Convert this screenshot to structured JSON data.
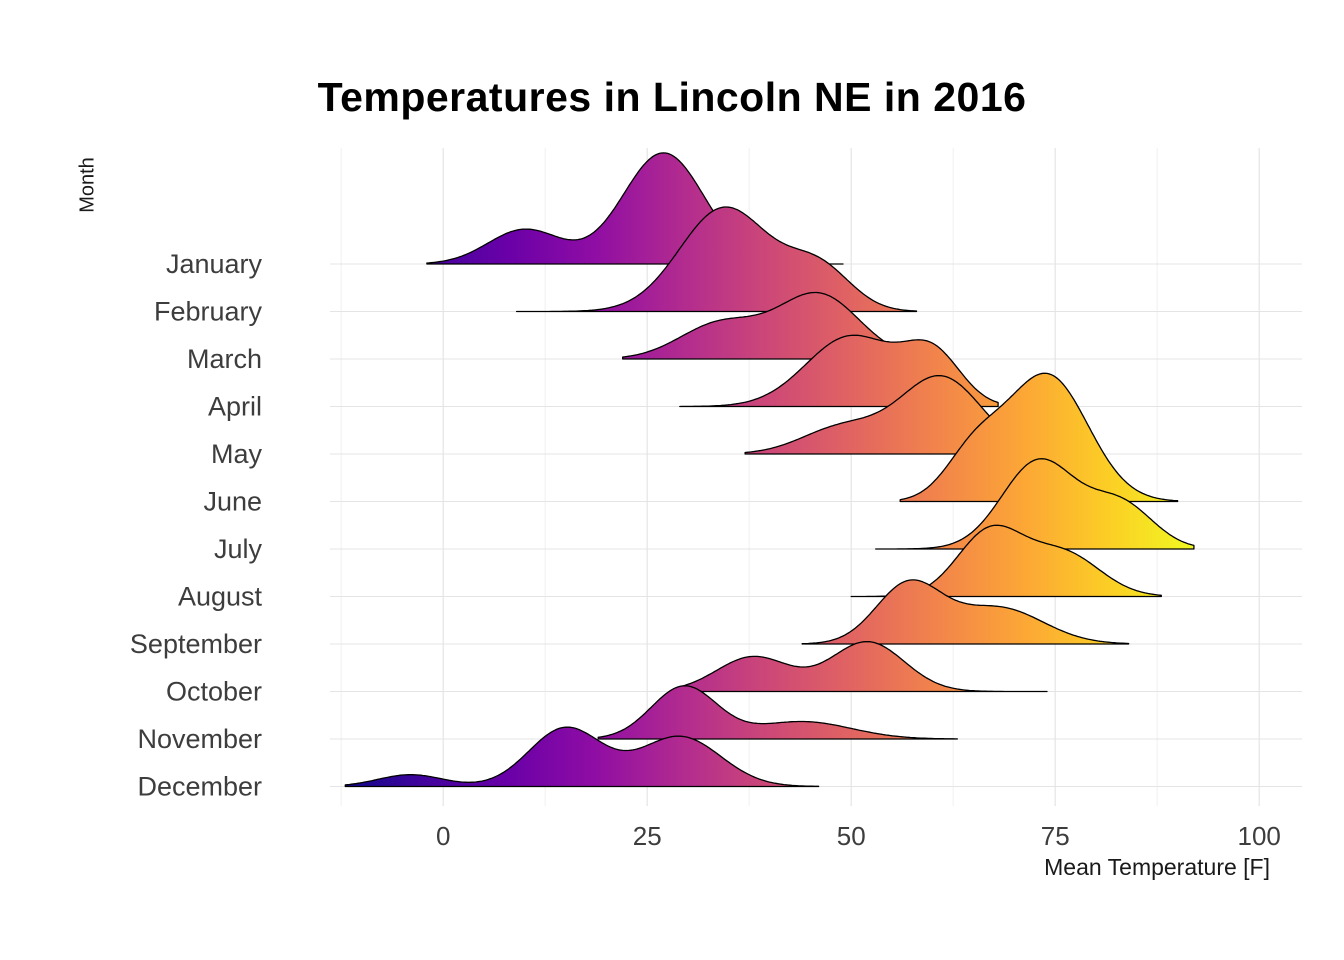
{
  "chart_data": {
    "type": "ridgeline",
    "title": "Temperatures in Lincoln NE in 2016",
    "xlabel": "Mean Temperature [F]",
    "ylabel": "Month",
    "x_ticks": [
      0,
      25,
      50,
      75,
      100
    ],
    "x_minor_ticks": [
      -12.5,
      12.5,
      37.5,
      62.5,
      87.5
    ],
    "xlim": [
      -14,
      105
    ],
    "grid": true,
    "legend": "none",
    "colors": {
      "outline": "#000000",
      "grid_major": "#e4e4e4",
      "grid_minor": "#f1f1f1",
      "axis_text": "#3d3d3d",
      "background": "#ffffff"
    },
    "color_scale": {
      "name": "plasma",
      "mapped_to": "x",
      "domain": [
        -13,
        92
      ],
      "stops": [
        {
          "offset": 0.0,
          "color": "#0d0887"
        },
        {
          "offset": 0.1,
          "color": "#41049d"
        },
        {
          "offset": 0.2,
          "color": "#6a00a8"
        },
        {
          "offset": 0.3,
          "color": "#8f0da4"
        },
        {
          "offset": 0.4,
          "color": "#b12a90"
        },
        {
          "offset": 0.5,
          "color": "#cc4778"
        },
        {
          "offset": 0.6,
          "color": "#e16462"
        },
        {
          "offset": 0.7,
          "color": "#f2844b"
        },
        {
          "offset": 0.8,
          "color": "#fca636"
        },
        {
          "offset": 0.9,
          "color": "#fcce25"
        },
        {
          "offset": 1.0,
          "color": "#f0f921"
        }
      ]
    },
    "months": [
      {
        "label": "January",
        "xmin": -2,
        "xmax": 49,
        "peak_height": 2.34,
        "components": [
          {
            "mean": 27,
            "sd": 5.0,
            "weight": 1.0
          },
          {
            "mean": 10,
            "sd": 4.5,
            "weight": 0.28
          }
        ]
      },
      {
        "label": "February",
        "xmin": 9,
        "xmax": 58,
        "peak_height": 2.2,
        "components": [
          {
            "mean": 34.5,
            "sd": 5.5,
            "weight": 1.0
          },
          {
            "mean": 46,
            "sd": 4.0,
            "weight": 0.3
          }
        ]
      },
      {
        "label": "March",
        "xmin": 22,
        "xmax": 60,
        "peak_height": 1.4,
        "components": [
          {
            "mean": 46,
            "sd": 5.0,
            "weight": 1.0
          },
          {
            "mean": 34,
            "sd": 5.0,
            "weight": 0.55
          }
        ]
      },
      {
        "label": "April",
        "xmin": 29,
        "xmax": 68,
        "peak_height": 1.5,
        "components": [
          {
            "mean": 50,
            "sd": 5.5,
            "weight": 1.0
          },
          {
            "mean": 60,
            "sd": 3.5,
            "weight": 0.45
          }
        ]
      },
      {
        "label": "May",
        "xmin": 37,
        "xmax": 74,
        "peak_height": 1.65,
        "components": [
          {
            "mean": 61,
            "sd": 5.0,
            "weight": 1.0
          },
          {
            "mean": 49,
            "sd": 5.0,
            "weight": 0.35
          }
        ]
      },
      {
        "label": "June",
        "xmin": 56,
        "xmax": 90,
        "peak_height": 2.7,
        "components": [
          {
            "mean": 74,
            "sd": 5.0,
            "weight": 1.0
          },
          {
            "mean": 65,
            "sd": 3.5,
            "weight": 0.25
          }
        ]
      },
      {
        "label": "July",
        "xmin": 53,
        "xmax": 92,
        "peak_height": 1.9,
        "components": [
          {
            "mean": 73,
            "sd": 4.5,
            "weight": 1.0
          },
          {
            "mean": 83,
            "sd": 4.0,
            "weight": 0.45
          }
        ]
      },
      {
        "label": "August",
        "xmin": 50,
        "xmax": 88,
        "peak_height": 1.5,
        "components": [
          {
            "mean": 67,
            "sd": 4.0,
            "weight": 1.0
          },
          {
            "mean": 76,
            "sd": 4.5,
            "weight": 0.75
          }
        ]
      },
      {
        "label": "September",
        "xmin": 44,
        "xmax": 84,
        "peak_height": 1.35,
        "components": [
          {
            "mean": 57,
            "sd": 4.0,
            "weight": 1.0
          },
          {
            "mean": 68,
            "sd": 5.5,
            "weight": 0.85
          }
        ]
      },
      {
        "label": "October",
        "xmin": 29,
        "xmax": 74,
        "peak_height": 1.05,
        "components": [
          {
            "mean": 52,
            "sd": 4.5,
            "weight": 1.0
          },
          {
            "mean": 38,
            "sd": 4.5,
            "weight": 0.7
          }
        ]
      },
      {
        "label": "November",
        "xmin": 19,
        "xmax": 63,
        "peak_height": 1.12,
        "components": [
          {
            "mean": 29.5,
            "sd": 4.0,
            "weight": 1.0
          },
          {
            "mean": 44,
            "sd": 6.0,
            "weight": 0.5
          }
        ]
      },
      {
        "label": "December",
        "xmin": -12,
        "xmax": 46,
        "peak_height": 1.25,
        "components": [
          {
            "mean": 15,
            "sd": 4.5,
            "weight": 1.0
          },
          {
            "mean": 29,
            "sd": 5.0,
            "weight": 0.95
          },
          {
            "mean": -4,
            "sd": 4.0,
            "weight": 0.18
          }
        ]
      }
    ]
  }
}
